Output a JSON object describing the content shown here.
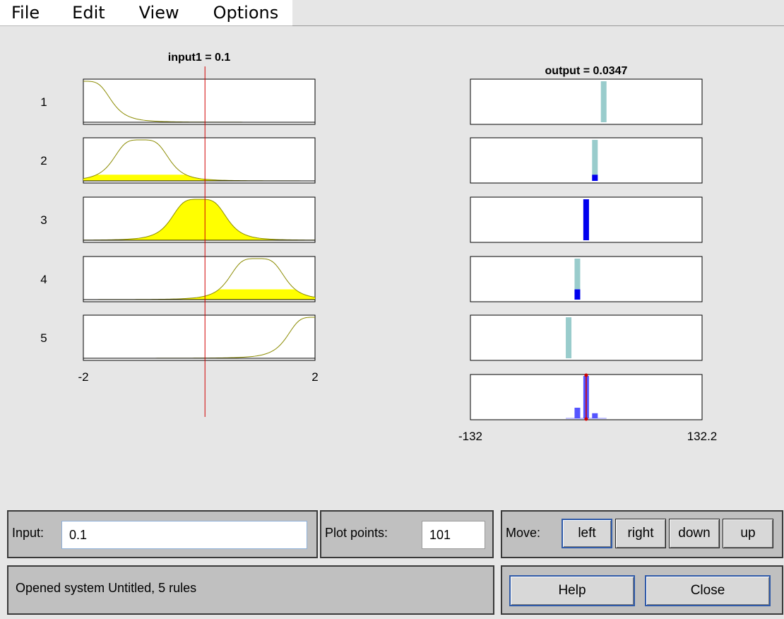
{
  "menu": {
    "file": "File",
    "edit": "Edit",
    "view": "View",
    "options": "Options"
  },
  "chart_data": [
    {
      "type": "line",
      "title": "input1 = 0.1",
      "rows": [
        "1",
        "2",
        "3",
        "4",
        "5"
      ],
      "xlim": [
        -2,
        2
      ],
      "xtick_labels": [
        "-2",
        "2"
      ],
      "input_value": 0.1,
      "mf_centers": [
        -2,
        -1,
        0,
        1,
        2
      ],
      "firing_strengths": [
        0.0,
        0.15,
        1.0,
        0.25,
        0.0
      ],
      "series_color": "#8b8b00",
      "fill_color": "#ffff00",
      "cursor_color": "#d00000"
    },
    {
      "type": "bar",
      "title": "output = 0.0347",
      "xlim": [
        -132,
        132.2
      ],
      "xtick_labels": [
        "-132",
        "132.2"
      ],
      "output_value": 0.0347,
      "rule_outputs": [
        20,
        10,
        0,
        -10,
        -20
      ],
      "rule_strengths": [
        0.0,
        0.15,
        1.0,
        0.25,
        0.0
      ],
      "aggregate": {
        "x": [
          -20,
          -10,
          0,
          10,
          20
        ],
        "values": [
          0.0,
          0.25,
          1.0,
          0.12,
          0.0
        ]
      },
      "bar_color": "#99cccc",
      "fired_color": "#0000ee",
      "aggregate_color": "#5555ff",
      "marker_color": "#d00000"
    }
  ],
  "controls": {
    "input_label": "Input:",
    "input_value": "0.1",
    "plot_points_label": "Plot points:",
    "plot_points_value": "101",
    "move_label": "Move:",
    "left": "left",
    "right": "right",
    "down": "down",
    "up": "up",
    "status": "Opened system Untitled, 5 rules",
    "help": "Help",
    "close": "Close"
  }
}
